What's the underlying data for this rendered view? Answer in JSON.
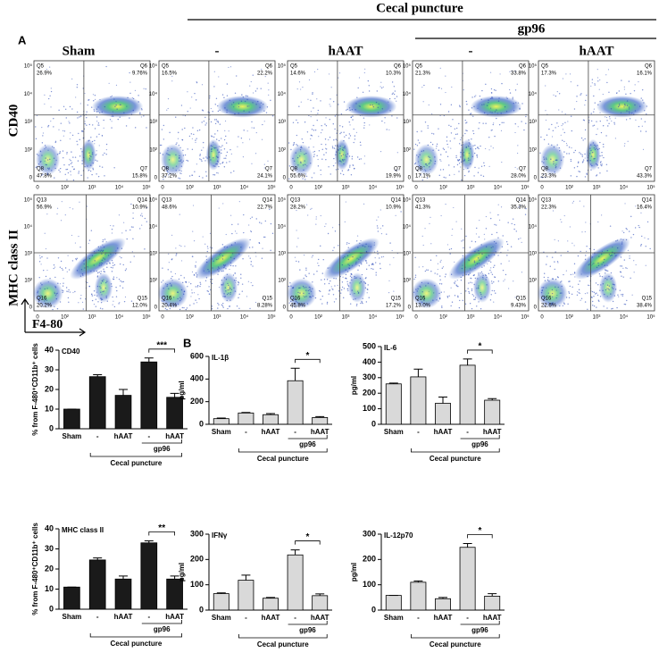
{
  "panel_label_a": "A",
  "panel_label_b": "B",
  "header": {
    "cecal_puncture": "Cecal puncture",
    "gp96": "gp96",
    "columns": [
      "Sham",
      "-",
      "hAAT",
      "-",
      "hAAT"
    ]
  },
  "row_labels": [
    "CD40",
    "MHC class II"
  ],
  "x_axis_label": "F4-80",
  "flow_axis_ticks": [
    "0",
    "10²",
    "10³",
    "10⁴",
    "10⁵"
  ],
  "gate_names": [
    [
      "Q5",
      "Q6",
      "Q8",
      "Q7"
    ],
    [
      "Q13",
      "Q14",
      "Q16",
      "Q15"
    ]
  ],
  "percentages": [
    [
      [
        "26.9%",
        "9.76%",
        "47.8%",
        "15.8%"
      ],
      [
        "16.5%",
        "22.2%",
        "37.2%",
        "24.1%"
      ],
      [
        "14.6%",
        "10.3%",
        "55.6%",
        "19.9%"
      ],
      [
        "21.3%",
        "33.8%",
        "17.1%",
        "28.0%"
      ],
      [
        "17.3%",
        "16.1%",
        "23.3%",
        "43.3%"
      ]
    ],
    [
      [
        "56.9%",
        "10.9%",
        "20.2%",
        "12.0%"
      ],
      [
        "48.6%",
        "22.7%",
        "20.4%",
        "8.28%"
      ],
      [
        "28.2%",
        "10.9%",
        "45.8%",
        "17.2%"
      ],
      [
        "41.3%",
        "35.3%",
        "13.0%",
        "9.43%"
      ],
      [
        "22.3%",
        "16.4%",
        "22.6%",
        "38.4%"
      ]
    ]
  ],
  "chart_data": [
    {
      "type": "bar",
      "title": "CD40",
      "y_label": "% from F-480⁺CD11b⁺ cells",
      "categories": [
        "Sham",
        "-",
        "hAAT",
        "-",
        "hAAT"
      ],
      "group_inner": "gp96",
      "group_outer": "Cecal puncture",
      "values": [
        10,
        26.5,
        17,
        34,
        16
      ],
      "errors": [
        0,
        1,
        3,
        2,
        2
      ],
      "significance": "***",
      "color": "#1a1a1a",
      "edge_color": "#000000",
      "ylim": [
        0,
        40
      ],
      "yticks": [
        0,
        10,
        20,
        30,
        40
      ]
    },
    {
      "type": "bar",
      "title": "MHC class II",
      "y_label": "% from F-480⁺CD11b⁺ cells",
      "categories": [
        "Sham",
        "-",
        "hAAT",
        "-",
        "hAAT"
      ],
      "group_inner": "gp96",
      "group_outer": "Cecal puncture",
      "values": [
        11,
        24.5,
        15,
        33,
        15
      ],
      "errors": [
        0,
        1,
        1.5,
        1,
        1.5
      ],
      "significance": "**",
      "color": "#1a1a1a",
      "edge_color": "#000000",
      "ylim": [
        0,
        40
      ],
      "yticks": [
        0,
        10,
        20,
        30,
        40
      ]
    },
    {
      "type": "bar",
      "title": "IL-1β",
      "y_label": "pg/ml",
      "categories": [
        "Sham",
        "-",
        "hAAT",
        "-",
        "hAAT"
      ],
      "group_inner": "gp96",
      "group_outer": "Cecal puncture",
      "values": [
        50,
        100,
        85,
        385,
        60
      ],
      "errors": [
        5,
        5,
        10,
        110,
        8
      ],
      "significance": "*",
      "color": "#d9d9d9",
      "edge_color": "#000000",
      "ylim": [
        0,
        600
      ],
      "yticks": [
        0,
        200,
        400,
        600
      ]
    },
    {
      "type": "bar",
      "title": "IL-6",
      "y_label": "pg/ml",
      "categories": [
        "Sham",
        "-",
        "hAAT",
        "-",
        "hAAT"
      ],
      "group_inner": "gp96",
      "group_outer": "Cecal puncture",
      "values": [
        260,
        305,
        135,
        380,
        155
      ],
      "errors": [
        5,
        50,
        40,
        40,
        10
      ],
      "significance": "*",
      "color": "#d9d9d9",
      "edge_color": "#000000",
      "ylim": [
        0,
        500
      ],
      "yticks": [
        0,
        100,
        200,
        300,
        400,
        500
      ]
    },
    {
      "type": "bar",
      "title": "IFNγ",
      "y_label": "pg/ml",
      "categories": [
        "Sham",
        "-",
        "hAAT",
        "-",
        "hAAT"
      ],
      "group_inner": "gp96",
      "group_outer": "Cecal puncture",
      "values": [
        65,
        118,
        47,
        218,
        57
      ],
      "errors": [
        3,
        20,
        3,
        20,
        7
      ],
      "significance": "*",
      "color": "#d9d9d9",
      "edge_color": "#000000",
      "ylim": [
        0,
        300
      ],
      "yticks": [
        0,
        100,
        200,
        300
      ]
    },
    {
      "type": "bar",
      "title": "IL-12p70",
      "y_label": "pg/ml",
      "categories": [
        "Sham",
        "-",
        "hAAT",
        "-",
        "hAAT"
      ],
      "group_inner": "gp96",
      "group_outer": "Cecal puncture",
      "values": [
        58,
        110,
        45,
        248,
        55
      ],
      "errors": [
        0,
        5,
        5,
        15,
        10
      ],
      "significance": "*",
      "color": "#d9d9d9",
      "edge_color": "#000000",
      "ylim": [
        0,
        300
      ],
      "yticks": [
        0,
        100,
        200,
        300
      ]
    }
  ]
}
